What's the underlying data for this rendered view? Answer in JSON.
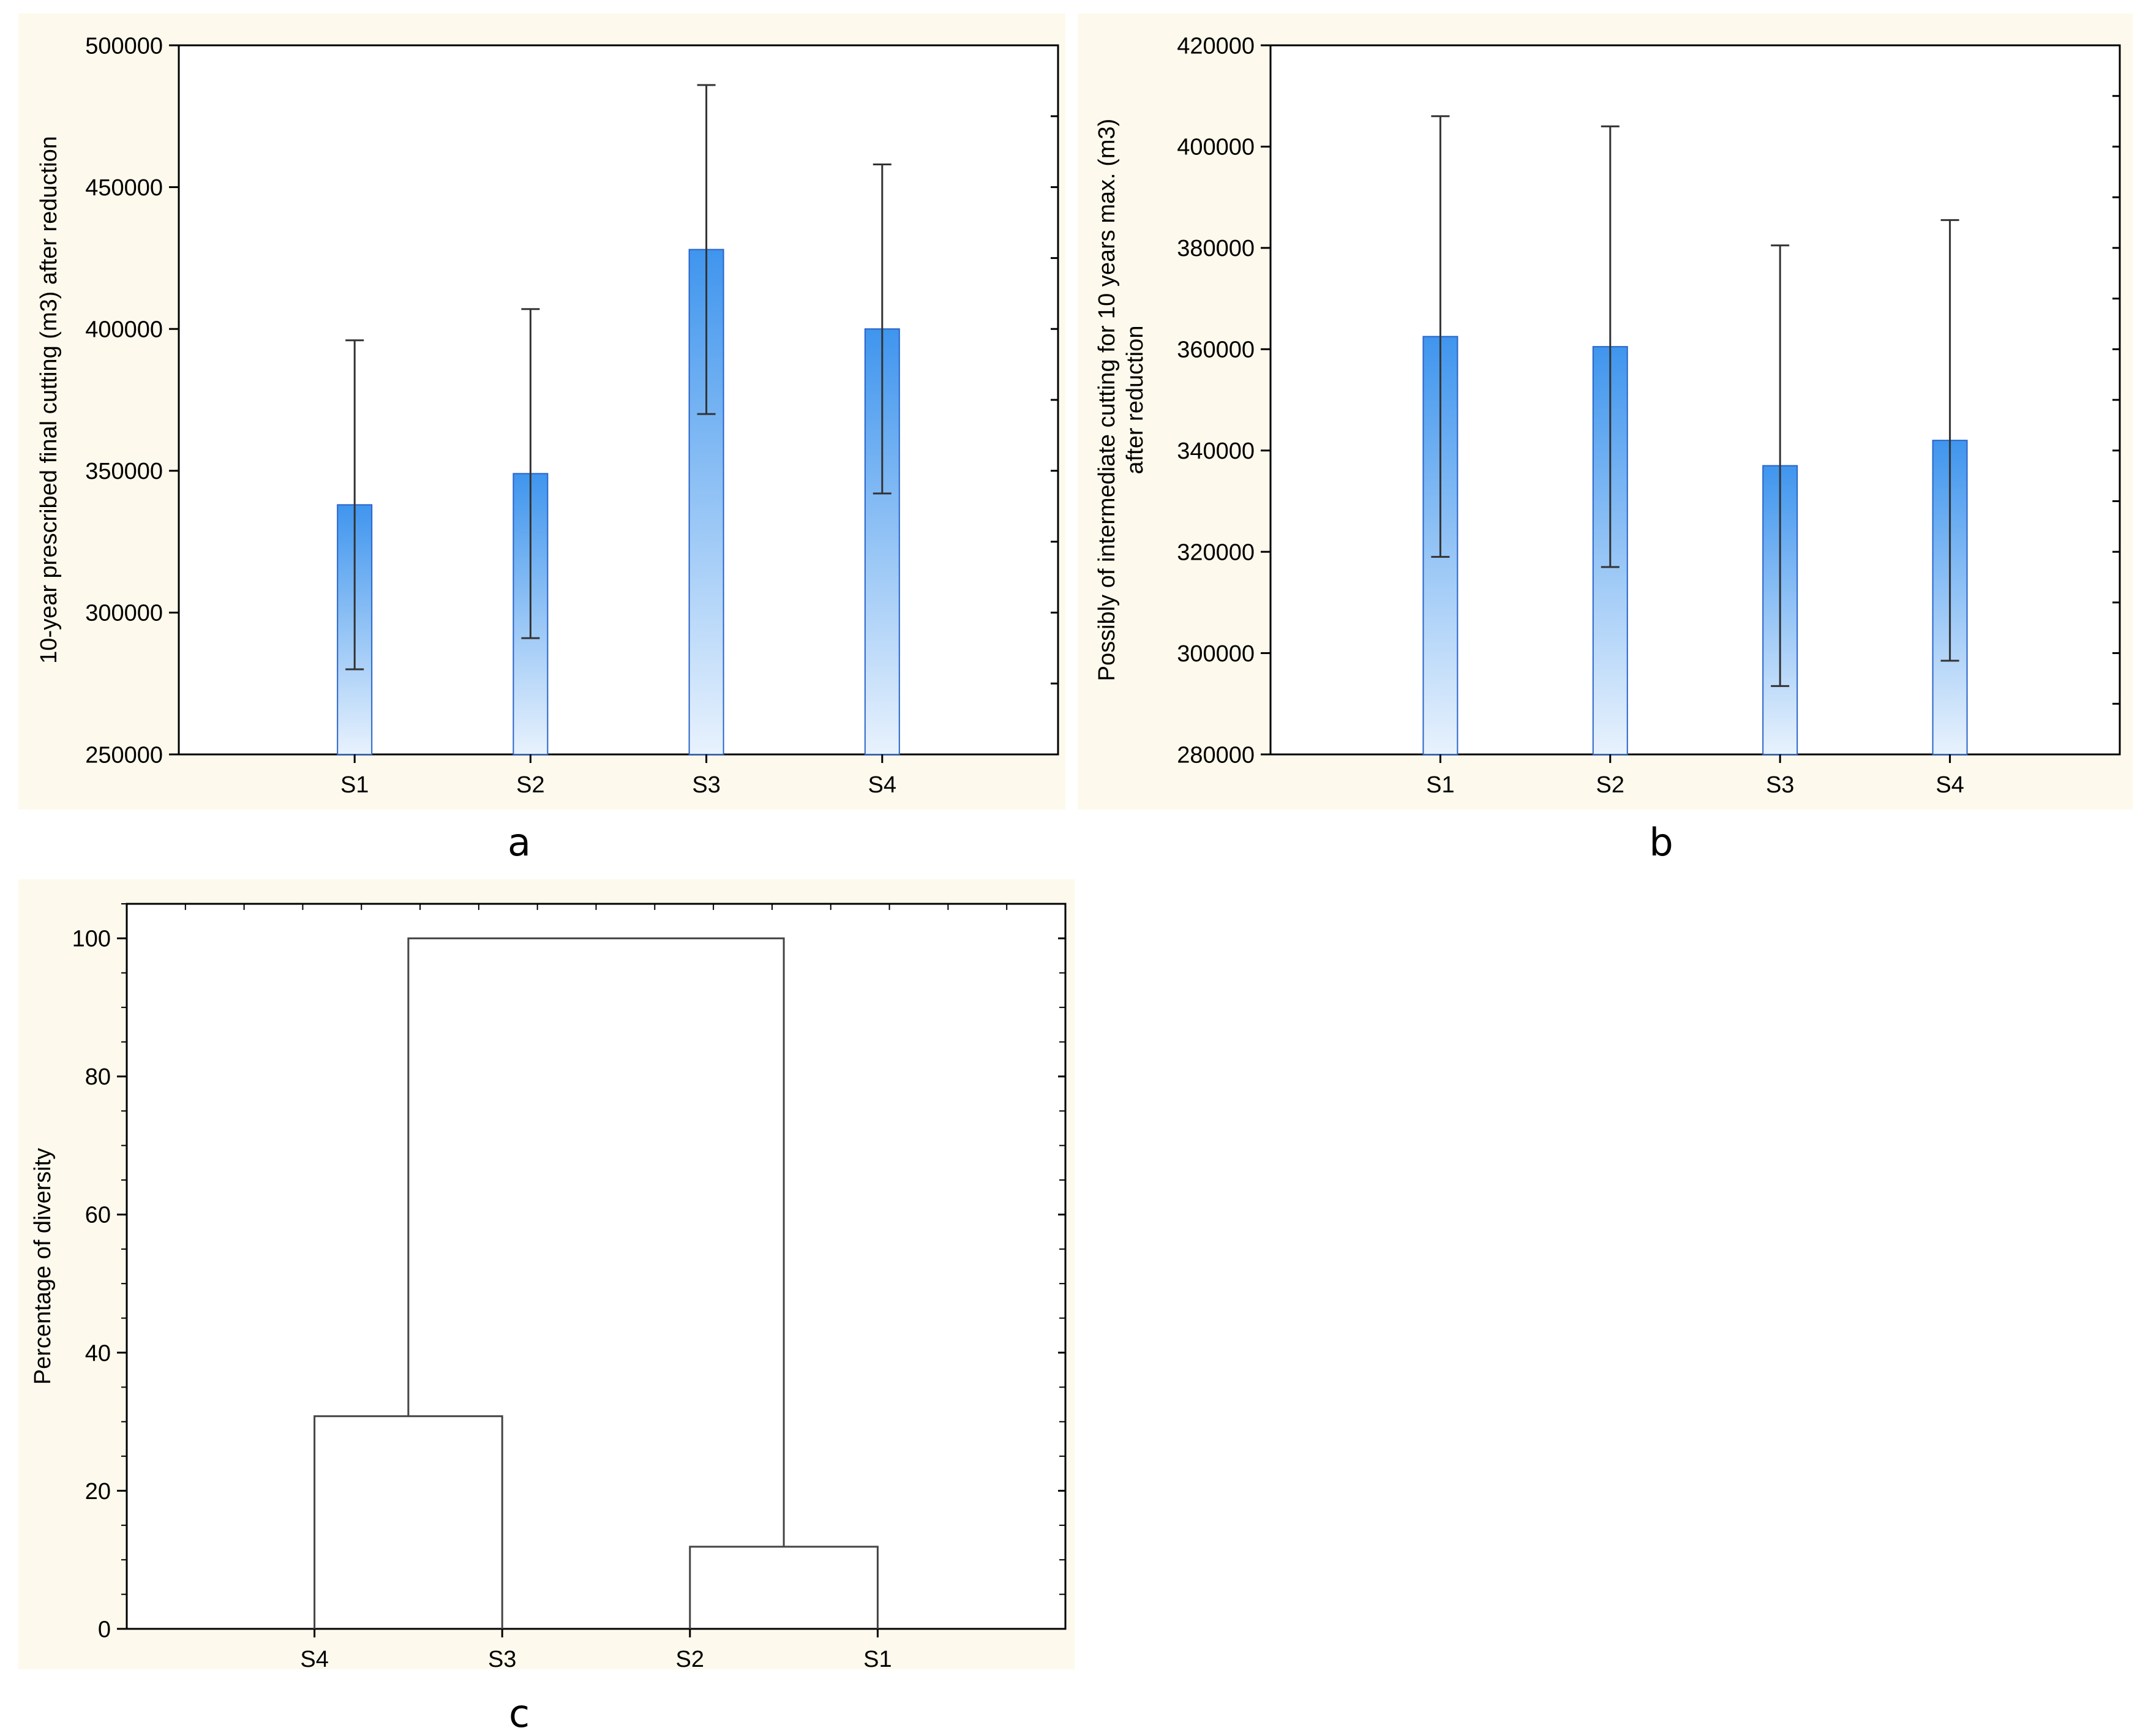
{
  "colors": {
    "panel_background": "#fdf9ec",
    "bar_top": "#3f95ee",
    "bar_bottom": "#e8f2fd",
    "bar_stroke": "#2a64c8",
    "axis": "#000000",
    "error_bar": "#333333",
    "dendrogram_line": "#444444"
  },
  "chart_data": [
    {
      "panel": "a",
      "type": "bar",
      "title": "",
      "xlabel": "",
      "ylabel": "10-year prescribed final cutting (m3) after reduction",
      "categories": [
        "S1",
        "S2",
        "S3",
        "S4"
      ],
      "values": [
        338000,
        349000,
        428000,
        400000
      ],
      "error_low": [
        280000,
        291000,
        370000,
        342000
      ],
      "error_high": [
        396000,
        407000,
        486000,
        458000
      ],
      "ylim": [
        250000,
        500000
      ],
      "yticks": [
        250000,
        300000,
        350000,
        400000,
        450000,
        500000
      ],
      "ytick_labels": [
        "250000",
        "300000",
        "350000",
        "400000",
        "450000",
        "500000"
      ],
      "grid": false,
      "legend": "none"
    },
    {
      "panel": "b",
      "type": "bar",
      "title": "",
      "xlabel": "",
      "ylabel_lines": [
        "Possibly of intermediate cutting for 10 years max. (m3)",
        "after reduction"
      ],
      "categories": [
        "S1",
        "S2",
        "S3",
        "S4"
      ],
      "values": [
        362500,
        360500,
        337000,
        342000
      ],
      "error_low": [
        319000,
        317000,
        293500,
        298500
      ],
      "error_high": [
        406000,
        404000,
        380500,
        385500
      ],
      "ylim": [
        280000,
        420000
      ],
      "yticks": [
        280000,
        300000,
        320000,
        340000,
        360000,
        380000,
        400000,
        420000
      ],
      "ytick_labels": [
        "280000",
        "300000",
        "320000",
        "340000",
        "360000",
        "380000",
        "400000",
        "420000"
      ],
      "grid": false,
      "legend": "none"
    },
    {
      "panel": "c",
      "type": "dendrogram",
      "title": "",
      "xlabel": "",
      "ylabel": "Percentage of diversity",
      "leaves": [
        "S4",
        "S3",
        "S2",
        "S1"
      ],
      "merges": [
        {
          "left": "S4",
          "right": "S3",
          "height": 30.8
        },
        {
          "left": "S2",
          "right": "S1",
          "height": 11.9
        },
        {
          "left": "S4+S3",
          "right": "S2+S1",
          "height": 100
        }
      ],
      "ylim": [
        0,
        105
      ],
      "yticks": [
        0,
        20,
        40,
        60,
        80,
        100
      ],
      "ytick_labels": [
        "0",
        "20",
        "40",
        "60",
        "80",
        "100"
      ],
      "grid": false,
      "legend": "none"
    }
  ],
  "panel_labels": {
    "a": "a",
    "b": "b",
    "c": "c"
  }
}
